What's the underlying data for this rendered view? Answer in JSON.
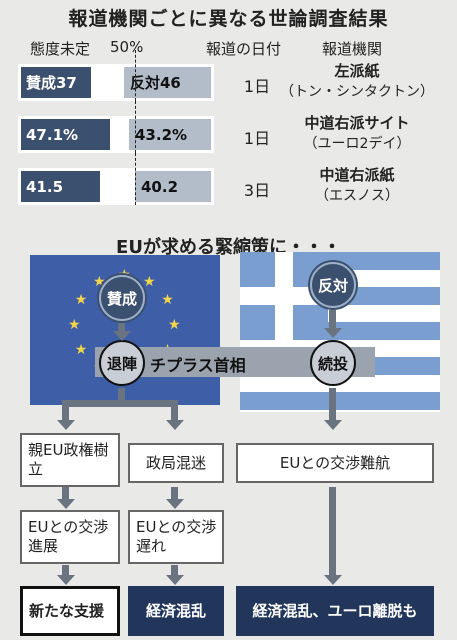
{
  "title": "報道機関ごとに異なる世論調査結果",
  "headers": {
    "undecided": "態度未定",
    "half": "50%",
    "date": "報道の日付",
    "outlet": "報道機関"
  },
  "polls": [
    {
      "favor_label": "賛成37",
      "against_label": "反対46",
      "favor": 37,
      "undecided": 17,
      "against": 46,
      "date": "1日",
      "outlet": "左派紙",
      "outlet_detail": "（トン・シンタクトン）"
    },
    {
      "favor_label": "47.1%",
      "against_label": "43.2%",
      "favor": 47.1,
      "undecided": 9.7,
      "against": 43.2,
      "date": "1日",
      "outlet": "中道右派サイト",
      "outlet_detail": "（ユーロ2デイ）"
    },
    {
      "favor_label": "41.5",
      "against_label": "40.2",
      "favor": 41.5,
      "undecided": 18.3,
      "against": 40.2,
      "date": "3日",
      "outlet": "中道右派紙",
      "outlet_detail": "（エスノス）"
    }
  ],
  "flow": {
    "subtitle": "EUが求める緊縮策に・・・",
    "favor": "賛成",
    "against": "反対",
    "resign": "退陣",
    "continue": "続投",
    "pm": "チプラス首相",
    "pro_eu_gov": "親EU政権樹立",
    "turmoil": "政局混迷",
    "eu_negotiation_trouble": "EUとの交渉難航",
    "eu_progress": "EUとの交渉進展",
    "eu_delay": "EUとの交渉遅れ",
    "new_aid": "新たな支援",
    "economic_chaos": "経済混乱",
    "economic_chaos_grexit": "経済混乱、ユーロ離脱も"
  }
}
